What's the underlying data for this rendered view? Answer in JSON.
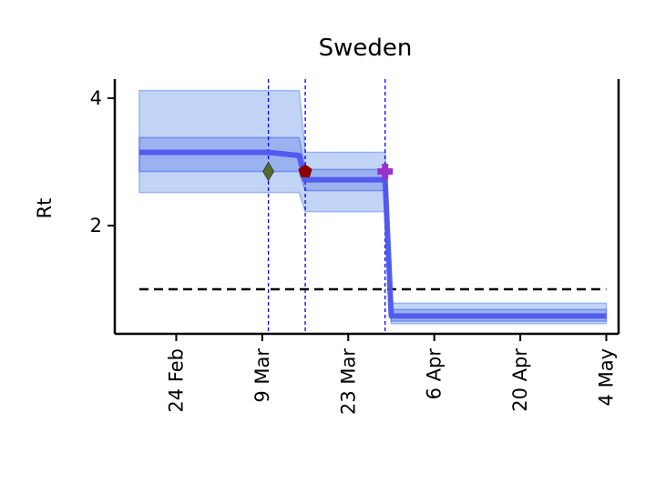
{
  "chart_data": {
    "type": "line",
    "title": "Sweden",
    "ylabel": "Rt",
    "xlabel": "",
    "x_type": "date",
    "xlim": [
      "2020-02-14",
      "2020-05-06"
    ],
    "ylim": [
      0.3,
      4.3
    ],
    "yticks": [
      2,
      4
    ],
    "ytick_labels": [
      "2",
      "4"
    ],
    "xticks": [
      "2020-02-24",
      "2020-03-09",
      "2020-03-23",
      "2020-04-06",
      "2020-04-20",
      "2020-05-04"
    ],
    "xtick_labels": [
      "24 Feb",
      "9 Mar",
      "23 Mar",
      "6 Apr",
      "20 Apr",
      "4 May"
    ],
    "series": [
      {
        "kind": "median",
        "color": "#4f56ee",
        "points": [
          [
            "2020-02-18",
            3.15
          ],
          [
            "2020-03-10",
            3.15
          ],
          [
            "2020-03-15",
            3.1
          ],
          [
            "2020-03-16",
            2.72
          ],
          [
            "2020-03-29",
            2.72
          ],
          [
            "2020-03-30",
            0.58
          ],
          [
            "2020-05-04",
            0.58
          ]
        ]
      }
    ],
    "bands": [
      {
        "kind": "95% interval",
        "color": "#8fb0ee",
        "upper": [
          [
            "2020-02-18",
            4.12
          ],
          [
            "2020-03-15",
            4.12
          ],
          [
            "2020-03-16",
            3.15
          ],
          [
            "2020-03-29",
            3.15
          ],
          [
            "2020-03-30",
            0.78
          ],
          [
            "2020-05-04",
            0.78
          ]
        ],
        "lower": [
          [
            "2020-02-18",
            2.52
          ],
          [
            "2020-03-15",
            2.52
          ],
          [
            "2020-03-16",
            2.22
          ],
          [
            "2020-03-29",
            2.22
          ],
          [
            "2020-03-30",
            0.46
          ],
          [
            "2020-05-04",
            0.46
          ]
        ]
      },
      {
        "kind": "50% interval",
        "color": "#6b8ae8",
        "upper": [
          [
            "2020-02-18",
            3.38
          ],
          [
            "2020-03-15",
            3.38
          ],
          [
            "2020-03-16",
            2.88
          ],
          [
            "2020-03-29",
            2.88
          ],
          [
            "2020-03-30",
            0.68
          ],
          [
            "2020-05-04",
            0.68
          ]
        ],
        "lower": [
          [
            "2020-02-18",
            2.85
          ],
          [
            "2020-03-15",
            2.85
          ],
          [
            "2020-03-16",
            2.55
          ],
          [
            "2020-03-29",
            2.55
          ],
          [
            "2020-03-30",
            0.5
          ],
          [
            "2020-05-04",
            0.5
          ]
        ]
      }
    ],
    "reference_line": {
      "y": 1.0,
      "from": "2020-02-18",
      "to": "2020-05-04",
      "style": "dashed",
      "color": "#000000"
    },
    "intervention_lines": [
      "2020-03-10",
      "2020-03-16",
      "2020-03-29"
    ],
    "intervention_line_color": "#0000ff",
    "markers": [
      {
        "date": "2020-03-10",
        "y": 2.85,
        "shape": "diamond",
        "color": "#556b2f"
      },
      {
        "date": "2020-03-16",
        "y": 2.85,
        "shape": "pentagon",
        "color": "#8b0000"
      },
      {
        "date": "2020-03-29",
        "y": 2.85,
        "shape": "cross",
        "color": "#9932cc"
      }
    ],
    "grid": false,
    "spines": "left-bottom-right"
  }
}
